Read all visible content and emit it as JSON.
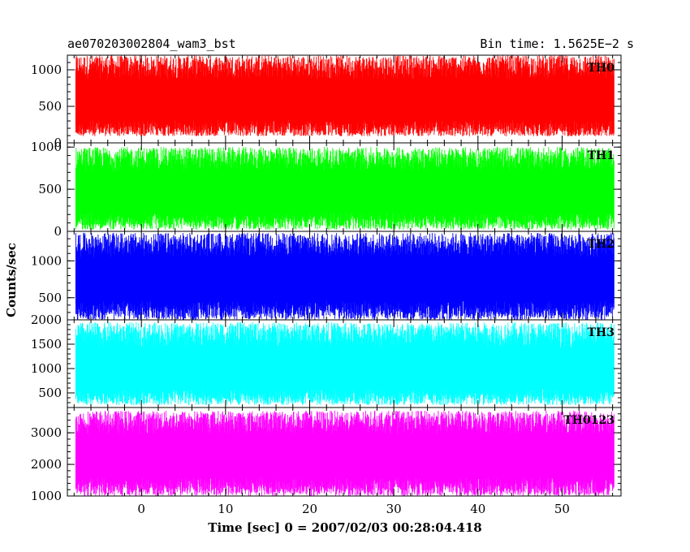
{
  "header": {
    "title": "ae070203002804_wam3_bst",
    "bin_time": "Bin time: 1.5625E−2 s"
  },
  "chart_data": {
    "type": "line",
    "xlabel": "Time [sec] 0 = 2007/02/03 00:28:04.418",
    "ylabel": "Counts/sec",
    "xlim": [
      -8.8,
      57.0
    ],
    "data_x_range": [
      -7.8,
      56.2
    ],
    "x_ticks": [
      0,
      10,
      20,
      30,
      40,
      50
    ],
    "x_tick_labels": [
      "0",
      "10",
      "20",
      "30",
      "40",
      "50"
    ],
    "grid": false,
    "legend": "none",
    "panels": [
      {
        "name": "TH0",
        "color": "#ff0000",
        "ylim": [
          0,
          1200
        ],
        "y_ticks": [
          0,
          500,
          1000
        ],
        "y_tick_labels": [
          "0",
          "500",
          "1000"
        ],
        "typical_range": [
          90,
          1200
        ],
        "mean": 600
      },
      {
        "name": "TH1",
        "color": "#00ff00",
        "ylim": [
          0,
          1050
        ],
        "y_ticks": [
          0,
          500,
          1000
        ],
        "y_tick_labels": [
          "0",
          "500",
          "1000"
        ],
        "typical_range": [
          20,
          1000
        ],
        "mean": 480
      },
      {
        "name": "TH2",
        "color": "#0000ff",
        "ylim": [
          200,
          1400
        ],
        "y_ticks": [
          500,
          1000
        ],
        "y_tick_labels": [
          "500",
          "1000"
        ],
        "typical_range": [
          200,
          1380
        ],
        "mean": 780
      },
      {
        "name": "TH3",
        "color": "#00ffff",
        "ylim": [
          200,
          2000
        ],
        "y_ticks": [
          500,
          1000,
          1500,
          2000
        ],
        "y_tick_labels": [
          "500",
          "1000",
          "1500",
          "2000"
        ],
        "typical_range": [
          250,
          1950
        ],
        "mean": 1000
      },
      {
        "name": "TH0123",
        "color": "#ff00ff",
        "ylim": [
          1000,
          3800
        ],
        "y_ticks": [
          1000,
          2000,
          3000
        ],
        "y_tick_labels": [
          "1000",
          "2000",
          "3000"
        ],
        "typical_range": [
          1000,
          3700
        ],
        "mean": 2350
      }
    ]
  }
}
